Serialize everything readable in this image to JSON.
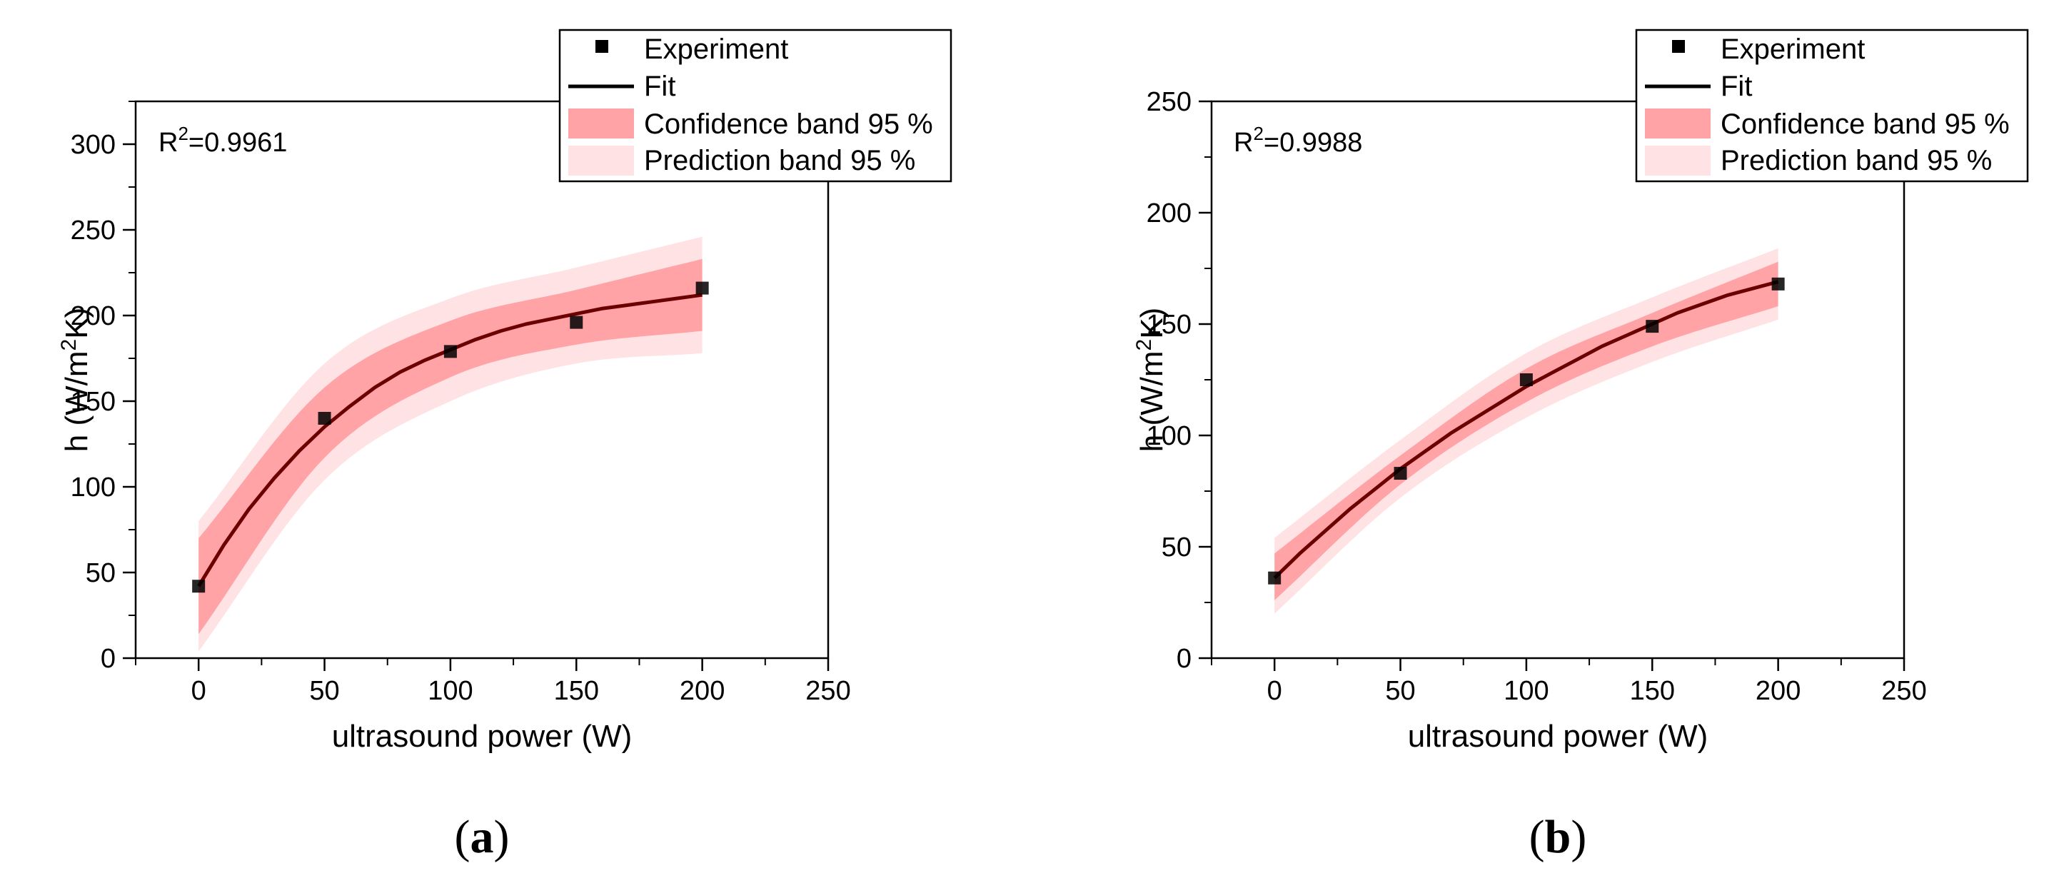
{
  "colors": {
    "confidence_band": "#ffa3a6",
    "prediction_band": "#ffe2e4",
    "fit_line": "#6b0000",
    "marker": "#000000"
  },
  "legend_labels": {
    "experiment": "Experiment",
    "fit": "Fit",
    "confidence": "Confidence band 95 %",
    "prediction": "Prediction band 95 %"
  },
  "panels": [
    {
      "label": "a",
      "r2_base": "R",
      "r2_sup": "2",
      "r2_value": "=0.9961"
    },
    {
      "label": "b",
      "r2_base": "R",
      "r2_sup": "2",
      "r2_value": "=0.9988"
    }
  ],
  "chart_data": [
    {
      "type": "scatter",
      "title": "",
      "xlabel": "ultrasound power (W)",
      "ylabel_parts": [
        "h (W/m",
        "2",
        "K)"
      ],
      "xlim": [
        -25,
        250
      ],
      "ylim": [
        0,
        325
      ],
      "xticks": [
        0,
        50,
        100,
        150,
        200,
        250
      ],
      "yticks": [
        0,
        50,
        100,
        150,
        200,
        250,
        300
      ],
      "legend_position": "top-right",
      "r2": 0.9961,
      "series": [
        {
          "name": "Experiment",
          "x": [
            0,
            50,
            100,
            150,
            200
          ],
          "y": [
            42,
            140,
            179,
            196,
            216
          ]
        },
        {
          "name": "Fit",
          "x": [
            0,
            10,
            20,
            30,
            40,
            50,
            60,
            70,
            80,
            90,
            100,
            110,
            120,
            130,
            140,
            150,
            160,
            170,
            180,
            190,
            200
          ],
          "y": [
            42,
            66,
            87,
            105,
            121,
            135,
            147,
            158,
            167,
            174,
            180,
            186,
            191,
            195,
            198,
            201,
            204,
            206,
            208,
            210,
            212
          ]
        }
      ],
      "confidence_band": {
        "x": [
          0,
          50,
          100,
          150,
          200
        ],
        "upper": [
          70,
          158,
          197,
          215,
          233
        ],
        "lower": [
          14,
          117,
          164,
          183,
          191
        ]
      },
      "prediction_band": {
        "x": [
          0,
          50,
          100,
          150,
          200
        ],
        "upper": [
          80,
          172,
          210,
          228,
          246
        ],
        "lower": [
          4,
          104,
          150,
          172,
          178
        ]
      }
    },
    {
      "type": "scatter",
      "title": "",
      "xlabel": "ultrasound power (W)",
      "ylabel_parts": [
        "h (W/m",
        "2",
        "K)"
      ],
      "xlim": [
        -25,
        250
      ],
      "ylim": [
        0,
        250
      ],
      "xticks": [
        0,
        50,
        100,
        150,
        200,
        250
      ],
      "yticks": [
        0,
        50,
        100,
        150,
        200,
        250
      ],
      "legend_position": "top-right",
      "r2": 0.9988,
      "series": [
        {
          "name": "Experiment",
          "x": [
            0,
            50,
            100,
            150,
            200
          ],
          "y": [
            36,
            83,
            125,
            149,
            168
          ]
        },
        {
          "name": "Fit",
          "x": [
            0,
            10,
            20,
            30,
            40,
            50,
            60,
            70,
            80,
            90,
            100,
            110,
            120,
            130,
            140,
            150,
            160,
            170,
            180,
            190,
            200
          ],
          "y": [
            36,
            47,
            57,
            67,
            76,
            85,
            93,
            101,
            108,
            115,
            122,
            128,
            134,
            140,
            145,
            150,
            155,
            159,
            163,
            166,
            169
          ]
        }
      ],
      "confidence_band": {
        "x": [
          0,
          50,
          100,
          150,
          200
        ],
        "upper": [
          47,
          91,
          130,
          155,
          178
        ],
        "lower": [
          26,
          78,
          115,
          140,
          158
        ]
      },
      "prediction_band": {
        "x": [
          0,
          50,
          100,
          150,
          200
        ],
        "upper": [
          54,
          98,
          137,
          162,
          184
        ],
        "lower": [
          20,
          72,
          108,
          133,
          152
        ]
      }
    }
  ]
}
